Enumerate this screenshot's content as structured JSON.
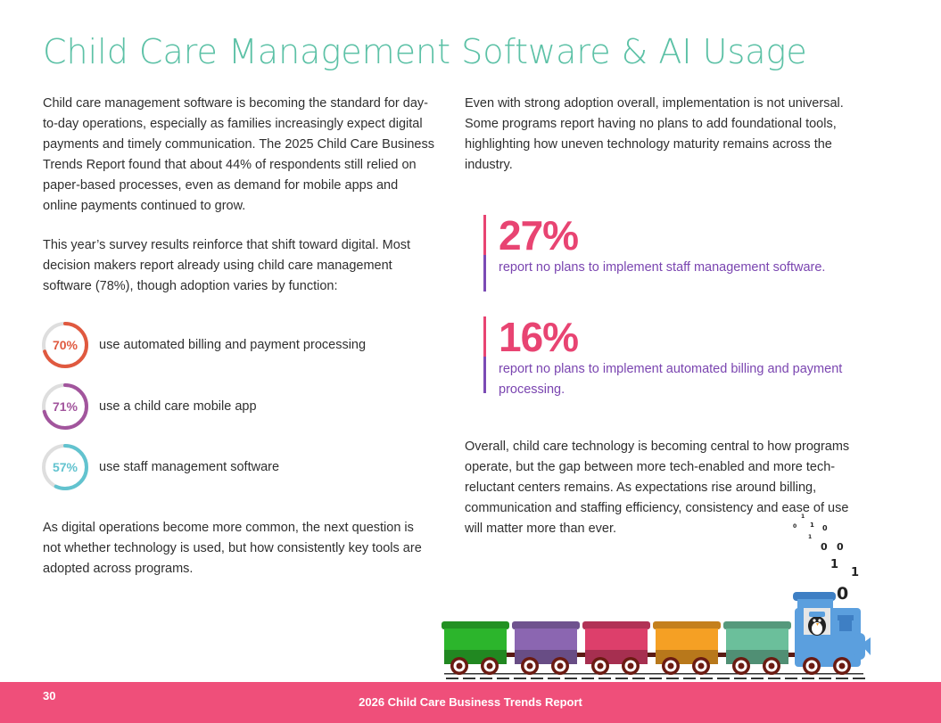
{
  "title": "Child Care Management Software & AI Usage",
  "left_column": {
    "para1": "Child care management software is becoming the standard for day-to-day operations, especially as families increasingly expect digital payments and timely communication. The 2025 Child Care Business Trends Report found that about 44% of respondents still relied on paper-based processes, even as demand for mobile apps and online payments continued to grow.",
    "para2": "This year’s survey results reinforce that shift toward digital. Most decision makers report already using child care management software (78%), though adoption varies by function:",
    "rings": [
      {
        "pct": "70%",
        "value": 70,
        "label": "use automated billing and payment processing",
        "color": "#e0593f"
      },
      {
        "pct": "71%",
        "value": 71,
        "label": "use a child care mobile app",
        "color": "#a2559d"
      },
      {
        "pct": "57%",
        "value": 57,
        "label": "use staff management software",
        "color": "#62c3cf"
      }
    ],
    "para3": "As digital operations become more common, the next question is not whether technology is used, but how consistently key tools are adopted across programs."
  },
  "right_column": {
    "para1": "Even with strong adoption overall, implementation is not universal. Some programs report having no plans to add foundational tools, highlighting how uneven technology maturity remains across the industry.",
    "stats": [
      {
        "number": "27%",
        "text": "report no plans to implement staff management software."
      },
      {
        "number": "16%",
        "text": "report no plans to implement automated billing and payment processing."
      }
    ],
    "para2": "Overall, child care technology is becoming central to how programs operate, but the gap between more tech-enabled and more tech-reluctant centers remains. As expectations rise around billing, communication and staffing efficiency, consistency and ease of use will matter more than ever."
  },
  "footer": {
    "page_number": "30",
    "report_title": "2026 Child Care Business Trends Report",
    "color": "#ef4f7a"
  },
  "train": {
    "car_colors": [
      "#2cb52c",
      "#8b66b1",
      "#dd3f6b",
      "#f5a024",
      "#6bbf9b"
    ],
    "engine_color": "#5b9fde",
    "binary_digits": [
      "0",
      "1",
      "0",
      "1",
      "1",
      "0",
      "0",
      "1",
      "1",
      "0"
    ]
  }
}
